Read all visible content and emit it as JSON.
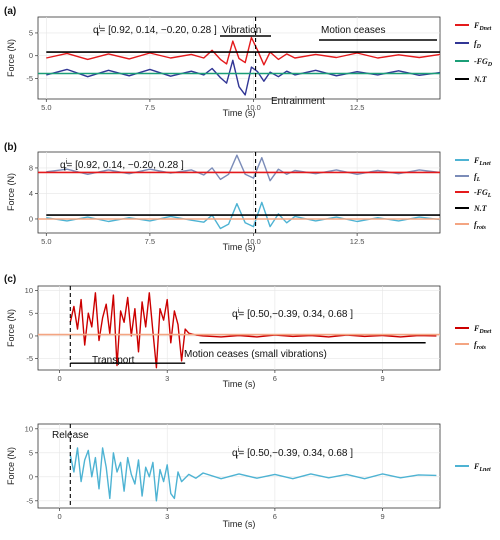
{
  "chart_data": [
    {
      "type": "line",
      "panel_label": "(a)",
      "xlabel": "Time (s)",
      "ylabel": "Force (N)",
      "xlim": [
        4.8,
        14.5
      ],
      "ylim": [
        -9.5,
        8.5
      ],
      "xticks": [
        5.0,
        7.5,
        10.0,
        12.5
      ],
      "xtick_labels": [
        "5.0",
        "7.5",
        "10.0",
        "12.5"
      ],
      "yticks": [
        -5,
        0,
        5
      ],
      "ytick_labels": [
        "-5",
        "0",
        "5"
      ],
      "grid": true,
      "legend_position": "right",
      "series": [
        {
          "name": "F_Dnet",
          "legend": "F",
          "sub": "Dnet",
          "color": "#e41a1c",
          "x": [
            5.0,
            5.5,
            6.0,
            6.5,
            7.0,
            7.5,
            8.0,
            8.5,
            8.8,
            9.0,
            9.2,
            9.35,
            9.5,
            9.65,
            9.8,
            9.95,
            10.1,
            10.25,
            10.4,
            10.6,
            10.8,
            11.0,
            11.5,
            12.0,
            12.5,
            13.0,
            13.5,
            14.0,
            14.5
          ],
          "y": [
            -0.5,
            0.5,
            -0.8,
            0.4,
            -0.7,
            0.6,
            -0.5,
            0.3,
            -0.5,
            1.2,
            -0.8,
            -1.8,
            3.2,
            -0.6,
            -1.5,
            4.0,
            1.2,
            -2.0,
            0.8,
            -0.8,
            0.4,
            -0.5,
            0.3,
            -0.4,
            0.6,
            -0.5,
            0.2,
            -0.4,
            0.3
          ]
        },
        {
          "name": "f_D",
          "legend": "f",
          "sub": "D",
          "color": "#313695",
          "x": [
            5.0,
            5.5,
            6.0,
            6.5,
            7.0,
            7.5,
            8.0,
            8.5,
            8.8,
            9.0,
            9.2,
            9.35,
            9.5,
            9.65,
            9.8,
            9.95,
            10.1,
            10.25,
            10.4,
            10.6,
            10.8,
            11.0,
            11.5,
            12.0,
            12.5,
            13.0,
            13.5,
            14.0,
            14.5
          ],
          "y": [
            -4.2,
            -3.0,
            -4.6,
            -3.2,
            -4.4,
            -3.0,
            -4.5,
            -3.4,
            -4.2,
            -2.8,
            -4.8,
            -6.0,
            -1.0,
            -6.8,
            -8.6,
            -2.5,
            -3.5,
            -5.6,
            -3.6,
            -4.6,
            -3.4,
            -4.2,
            -3.2,
            -4.4,
            -3.5,
            -4.2,
            -3.3,
            -4.3,
            -3.7
          ]
        },
        {
          "name": "-FG_D",
          "legend": "-FG",
          "sub": "D",
          "color": "#1b9e77",
          "x": [
            4.8,
            14.5
          ],
          "y": [
            -3.9,
            -3.9
          ]
        },
        {
          "name": "N.T",
          "legend": "N.T",
          "sub": "",
          "color": "#000000",
          "x": [
            5.0,
            14.5
          ],
          "y": [
            0.8,
            0.8
          ]
        }
      ],
      "vline_x": 10.05,
      "annotations": {
        "qi_base": "q",
        "qi_sup": "i",
        "qi_sub": "r",
        "qi_value": "= [0.92, 0.14, −0.20, 0.28 ]",
        "vibration": "Vibration",
        "motion_ceases": "Motion ceases",
        "entrainment": "Entrainment"
      }
    },
    {
      "type": "line",
      "panel_label": "(b)",
      "xlabel": "Time (s)",
      "ylabel": "Force (N)",
      "xlim": [
        4.8,
        14.5
      ],
      "ylim": [
        -2.2,
        10.5
      ],
      "xticks": [
        5.0,
        7.5,
        10.0,
        12.5
      ],
      "xtick_labels": [
        "5.0",
        "7.5",
        "10.0",
        "12.5"
      ],
      "yticks": [
        0,
        4,
        8
      ],
      "ytick_labels": [
        "0",
        "4",
        "8"
      ],
      "grid": true,
      "legend_position": "right",
      "series": [
        {
          "name": "F_Lnet",
          "legend": "F",
          "sub": "Lnet",
          "color": "#4eb3d3",
          "x": [
            5.0,
            5.5,
            6.0,
            6.5,
            7.0,
            7.5,
            8.0,
            8.5,
            8.8,
            9.0,
            9.2,
            9.4,
            9.6,
            9.8,
            10.0,
            10.2,
            10.4,
            10.6,
            10.8,
            11.0,
            11.5,
            12.0,
            12.5,
            13.0,
            13.5,
            14.0,
            14.5
          ],
          "y": [
            0.2,
            -0.3,
            0.3,
            -0.4,
            0.2,
            -0.3,
            0.4,
            -0.2,
            -0.5,
            0.6,
            -1.5,
            -0.8,
            2.4,
            -0.6,
            -1.2,
            2.6,
            -1.2,
            0.8,
            -0.6,
            0.4,
            -0.3,
            0.3,
            -0.4,
            0.2,
            -0.3,
            0.3,
            -0.1
          ]
        },
        {
          "name": "f_L",
          "legend": "f",
          "sub": "L",
          "color": "#7b8cb8",
          "x": [
            5.0,
            5.5,
            6.0,
            6.5,
            7.0,
            7.5,
            8.0,
            8.5,
            8.8,
            9.0,
            9.2,
            9.4,
            9.6,
            9.8,
            10.0,
            10.2,
            10.4,
            10.6,
            10.8,
            11.0,
            11.5,
            12.0,
            12.5,
            13.0,
            13.5,
            14.0,
            14.5
          ],
          "y": [
            7.4,
            7.8,
            7.0,
            7.7,
            7.1,
            7.8,
            7.2,
            7.7,
            6.9,
            8.0,
            6.2,
            7.0,
            10.0,
            7.0,
            6.4,
            9.6,
            6.0,
            7.8,
            7.0,
            7.6,
            7.1,
            7.7,
            7.0,
            7.6,
            7.1,
            7.7,
            7.3
          ]
        },
        {
          "name": "-FG_L",
          "legend": "-FG",
          "sub": "L",
          "color": "#e41a1c",
          "x": [
            4.8,
            14.5
          ],
          "y": [
            7.3,
            7.3
          ]
        },
        {
          "name": "N.T",
          "legend": "N.T",
          "sub": "",
          "color": "#000000",
          "x": [
            5.0,
            14.5
          ],
          "y": [
            0.6,
            0.6
          ]
        },
        {
          "name": "f_rots",
          "legend": "f",
          "sub": "rots",
          "color": "#f4a582",
          "x": [
            4.8,
            14.5
          ],
          "y": [
            0.0,
            0.0
          ]
        }
      ],
      "vline_x": 10.05,
      "annotations": {
        "qi_base": "q",
        "qi_sup": "i",
        "qi_sub": "r",
        "qi_value": "= [0.92, 0.14, −0.20, 0.28 ]"
      }
    },
    {
      "type": "line",
      "panel_label": "(c)",
      "xlabel": "Time (s)",
      "ylabel": "Force (N)",
      "xlim": [
        -0.6,
        10.6
      ],
      "ylim": [
        -7.5,
        11
      ],
      "xticks": [
        0,
        3,
        6,
        9
      ],
      "xtick_labels": [
        "0",
        "3",
        "6",
        "9"
      ],
      "yticks": [
        -5,
        0,
        5,
        10
      ],
      "ytick_labels": [
        "-5",
        "0",
        "5",
        "10"
      ],
      "grid": true,
      "legend_position": "right",
      "series": [
        {
          "name": "F_Dnet",
          "legend": "F",
          "sub": "Dnet",
          "color": "#cc0000",
          "x": [
            0.3,
            0.4,
            0.5,
            0.6,
            0.7,
            0.8,
            0.9,
            1.0,
            1.1,
            1.2,
            1.3,
            1.4,
            1.5,
            1.6,
            1.7,
            1.8,
            1.9,
            2.0,
            2.1,
            2.2,
            2.3,
            2.4,
            2.5,
            2.6,
            2.7,
            2.8,
            2.9,
            3.0,
            3.1,
            3.2,
            3.3,
            3.4,
            3.5,
            3.6,
            3.8,
            4.0,
            4.5,
            5.0,
            5.5,
            6.0,
            6.5,
            7.0,
            7.5,
            8.0,
            8.5,
            9.0,
            9.5,
            10.0,
            10.5
          ],
          "y": [
            3.0,
            6.5,
            1.5,
            8.0,
            -2.0,
            5.0,
            2.0,
            9.5,
            -1.0,
            4.0,
            7.0,
            0.5,
            9.0,
            -6.5,
            5.5,
            3.0,
            8.5,
            0.0,
            6.0,
            -3.5,
            7.5,
            2.0,
            9.5,
            1.0,
            -7.0,
            6.0,
            3.5,
            8.0,
            -1.5,
            5.5,
            2.5,
            -5.5,
            1.5,
            0.6,
            0.2,
            0.0,
            -0.2,
            0.1,
            -0.2,
            0.2,
            -0.1,
            0.1,
            -0.2,
            0.2,
            -0.1,
            0.1,
            -0.2,
            0.1,
            0.0
          ]
        },
        {
          "name": "f_rots",
          "legend": "f",
          "sub": "rots",
          "color": "#f4a582",
          "x": [
            -0.6,
            10.6
          ],
          "y": [
            0.3,
            0.3
          ]
        }
      ],
      "vline_x": 0.3,
      "hlines": [
        {
          "y": -6.0,
          "x": [
            0.3,
            3.5
          ]
        },
        {
          "y": -1.5,
          "x": [
            3.9,
            10.2
          ]
        }
      ],
      "annotations": {
        "qi_base": "q",
        "qi_sup": "i",
        "qi_sub": "r",
        "qi_value": "= [0.50,−0.39, 0.34, 0.68 ]",
        "transport": "Transport",
        "motion_ceases": "Motion ceases (small vibrations)"
      }
    },
    {
      "type": "line",
      "panel_label": "",
      "xlabel": "Time (s)",
      "ylabel": "Force (N)",
      "xlim": [
        -0.6,
        10.6
      ],
      "ylim": [
        -6.5,
        11
      ],
      "xticks": [
        0,
        3,
        6,
        9
      ],
      "xtick_labels": [
        "0",
        "3",
        "6",
        "9"
      ],
      "yticks": [
        -5,
        0,
        5,
        10
      ],
      "ytick_labels": [
        "-5",
        "0",
        "5",
        "10"
      ],
      "grid": true,
      "legend_position": "right",
      "series": [
        {
          "name": "F_Lnet",
          "legend": "F",
          "sub": "Lnet",
          "color": "#4eb3d3",
          "x": [
            0.3,
            0.4,
            0.5,
            0.6,
            0.7,
            0.8,
            0.9,
            1.0,
            1.1,
            1.2,
            1.3,
            1.4,
            1.5,
            1.6,
            1.7,
            1.8,
            1.9,
            2.0,
            2.1,
            2.2,
            2.3,
            2.4,
            2.5,
            2.6,
            2.7,
            2.8,
            2.9,
            3.0,
            3.1,
            3.2,
            3.3,
            3.4,
            3.6,
            3.8,
            4.0,
            4.5,
            5.0,
            5.5,
            6.0,
            6.5,
            7.0,
            7.5,
            8.0,
            8.5,
            9.0,
            9.5,
            10.0,
            10.5
          ],
          "y": [
            4.5,
            1.0,
            6.0,
            -1.0,
            3.5,
            5.5,
            0.0,
            4.0,
            -2.5,
            6.0,
            2.0,
            -4.5,
            5.0,
            1.0,
            3.0,
            -3.0,
            4.0,
            0.5,
            -1.5,
            3.5,
            -4.0,
            2.0,
            0.0,
            3.0,
            -5.0,
            1.5,
            -1.0,
            2.5,
            -3.5,
            -4.5,
            1.0,
            -1.0,
            0.5,
            -0.3,
            0.8,
            -0.4,
            0.6,
            -0.3,
            0.5,
            -0.4,
            0.6,
            -0.2,
            0.5,
            -0.4,
            0.6,
            -0.2,
            0.4,
            0.3
          ]
        }
      ],
      "vline_x": 0.3,
      "annotations": {
        "release": "Release",
        "qi_base": "q",
        "qi_sup": "i",
        "qi_sub": "r",
        "qi_value": "= [0.50,−0.39, 0.34, 0.68 ]"
      }
    }
  ]
}
